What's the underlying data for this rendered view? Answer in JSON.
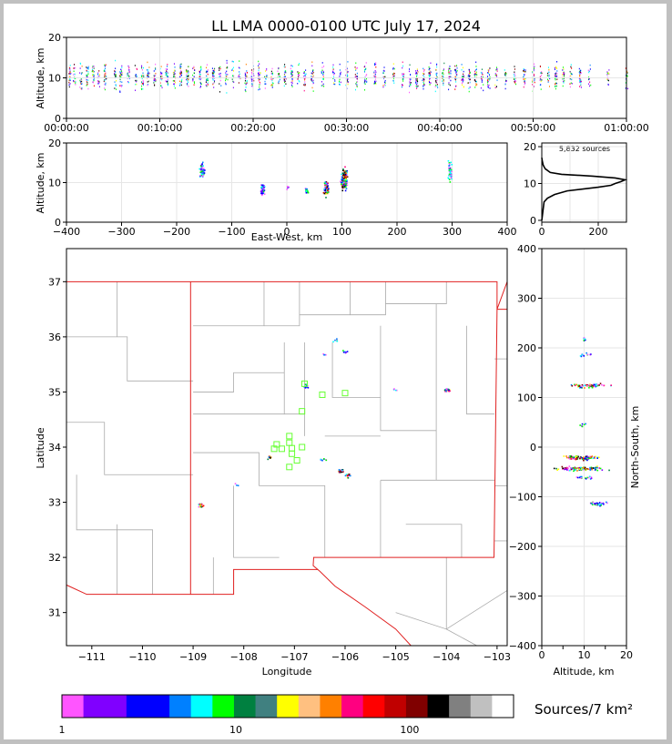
{
  "chart_data": {
    "title": "LL LMA 0000-0100 UTC July 17, 2024",
    "type": "scatter",
    "time_height": {
      "ylabel": "Altitude, km",
      "ylim": [
        0,
        20
      ],
      "yticks": [
        "0",
        "10",
        "20"
      ],
      "xticks": [
        "00:00:00",
        "00:10:00",
        "00:20:00",
        "00:30:00",
        "00:40:00",
        "00:50:00",
        "01:00:00"
      ],
      "xlim_minutes": [
        0,
        60
      ],
      "columns_minutes": [
        0.3,
        0.8,
        1.5,
        2.2,
        2.8,
        3.4,
        4.1,
        5.2,
        5.8,
        6.6,
        7.4,
        8.1,
        8.7,
        9.4,
        10.1,
        10.7,
        11.5,
        12.2,
        12.9,
        13.6,
        14.3,
        15.0,
        15.7,
        16.4,
        17.1,
        17.8,
        18.5,
        19.2,
        19.9,
        20.6,
        21.3,
        22.0,
        22.7,
        23.4,
        24.1,
        24.8,
        25.5,
        26.3,
        27.4,
        28.6,
        29.3,
        30.0,
        31.0,
        32.0,
        33.0,
        34.0,
        35.0,
        36.0,
        36.8,
        37.5,
        38.2,
        38.9,
        39.6,
        40.3,
        41.0,
        41.7,
        42.4,
        43.1,
        43.8,
        44.5,
        45.2,
        46.0,
        47.0,
        48.0,
        49.0,
        50.0,
        50.8,
        51.6,
        52.4,
        53.2,
        54.0,
        55.0,
        56.0,
        58.0,
        60.0
      ]
    },
    "ew_height": {
      "xlabel": "East-West, km",
      "ylabel": "Altitude, km",
      "xlim": [
        -400,
        400
      ],
      "ylim": [
        0,
        20
      ],
      "xticks": [
        "−400",
        "−300",
        "−200",
        "−100",
        "0",
        "100",
        "200",
        "300",
        "400"
      ],
      "yticks": [
        "0",
        "10",
        "20"
      ],
      "clusters": [
        {
          "x": -155,
          "y": 13,
          "spread_x": 6,
          "spread_y": 3,
          "n": 45
        },
        {
          "x": -45,
          "y": 8.5,
          "spread_x": 5,
          "spread_y": 2,
          "n": 40
        },
        {
          "x": 0,
          "y": 9,
          "spread_x": 2,
          "spread_y": 1,
          "n": 8
        },
        {
          "x": 35,
          "y": 8,
          "spread_x": 4,
          "spread_y": 1.2,
          "n": 20
        },
        {
          "x": 70,
          "y": 9,
          "spread_x": 6,
          "spread_y": 3,
          "n": 60
        },
        {
          "x": 103,
          "y": 11,
          "spread_x": 8,
          "spread_y": 3.5,
          "n": 140
        },
        {
          "x": 295,
          "y": 13,
          "spread_x": 5,
          "spread_y": 3.5,
          "n": 45
        }
      ]
    },
    "histogram": {
      "label": "5,832 sources",
      "xlim": [
        0,
        300
      ],
      "ylim": [
        0,
        20
      ],
      "xticks": [
        "0",
        "200"
      ],
      "yticks": [
        "0",
        "10",
        "20"
      ],
      "profile": [
        [
          0,
          0
        ],
        [
          5,
          8
        ],
        [
          6,
          20
        ],
        [
          7,
          45
        ],
        [
          8,
          90
        ],
        [
          9,
          200
        ],
        [
          9.5,
          245
        ],
        [
          10,
          260
        ],
        [
          10.5,
          280
        ],
        [
          11,
          295
        ],
        [
          11.5,
          260
        ],
        [
          12,
          180
        ],
        [
          12.5,
          70
        ],
        [
          13,
          30
        ],
        [
          14,
          12
        ],
        [
          15,
          5
        ],
        [
          16,
          2
        ],
        [
          17,
          0
        ]
      ]
    },
    "plan_view": {
      "xlabel": "Longitude",
      "ylabel": "Latitude",
      "xlim": [
        -111.5,
        -102.8
      ],
      "ylim": [
        30.4,
        37.6
      ],
      "xticks": [
        "−111",
        "−110",
        "−109",
        "−108",
        "−107",
        "−106",
        "−105",
        "−104",
        "−103"
      ],
      "yticks": [
        "31",
        "32",
        "33",
        "34",
        "35",
        "36",
        "37"
      ],
      "clusters": [
        {
          "lon": -108.85,
          "lat": 32.95,
          "n": 18
        },
        {
          "lon": -107.5,
          "lat": 33.82,
          "n": 12
        },
        {
          "lon": -106.45,
          "lat": 33.78,
          "n": 10
        },
        {
          "lon": -106.1,
          "lat": 33.58,
          "n": 30
        },
        {
          "lon": -105.95,
          "lat": 33.5,
          "n": 15
        },
        {
          "lon": -106.8,
          "lat": 35.12,
          "n": 10
        },
        {
          "lon": -106.2,
          "lat": 35.95,
          "n": 6
        },
        {
          "lon": -106.0,
          "lat": 35.75,
          "n": 6
        },
        {
          "lon": -106.45,
          "lat": 35.68,
          "n": 4
        },
        {
          "lon": -104.0,
          "lat": 35.05,
          "n": 25
        },
        {
          "lon": -105.05,
          "lat": 35.05,
          "n": 4
        },
        {
          "lon": -108.15,
          "lat": 33.33,
          "n": 3
        }
      ],
      "stations": [
        [
          -106.8,
          35.15
        ],
        [
          -106.45,
          34.95
        ],
        [
          -106.0,
          34.98
        ],
        [
          -106.85,
          34.65
        ],
        [
          -107.1,
          34.2
        ],
        [
          -107.1,
          34.08
        ],
        [
          -107.35,
          34.05
        ],
        [
          -107.4,
          33.97
        ],
        [
          -107.25,
          33.97
        ],
        [
          -107.05,
          33.98
        ],
        [
          -106.85,
          34.0
        ],
        [
          -107.05,
          33.88
        ],
        [
          -106.95,
          33.76
        ],
        [
          -107.1,
          33.64
        ]
      ]
    },
    "ns_height": {
      "xlabel": "Altitude, km",
      "ylabel": "North-South, km",
      "xlim": [
        0,
        20
      ],
      "ylim": [
        -400,
        400
      ],
      "xticks": [
        "0",
        "5",
        "10",
        "15",
        "20"
      ],
      "yticks": [
        "400",
        "300",
        "200",
        "100",
        "0",
        "−100",
        "−200",
        "−300",
        "−400"
      ],
      "clusters": [
        {
          "y": 220,
          "x": 10,
          "spread_x": 1,
          "n": 6
        },
        {
          "y": 188,
          "x": 10,
          "spread_x": 2,
          "n": 12
        },
        {
          "y": 125,
          "x": 11,
          "spread_x": 6,
          "n": 60
        },
        {
          "y": 48,
          "x": 9.5,
          "spread_x": 1,
          "n": 6
        },
        {
          "y": -20,
          "x": 9,
          "spread_x": 6,
          "n": 110
        },
        {
          "y": -42,
          "x": 9,
          "spread_x": 7,
          "n": 110
        },
        {
          "y": -60,
          "x": 10,
          "spread_x": 3,
          "n": 15
        },
        {
          "y": -112,
          "x": 13,
          "spread_x": 4,
          "n": 35
        }
      ]
    },
    "colorbar": {
      "label": "Sources/7 km²",
      "ticks": [
        "1",
        "10",
        "100"
      ],
      "colors": [
        "#ff55ff",
        "#8000ff",
        "#8000ff",
        "#0000ff",
        "#0000ff",
        "#0080ff",
        "#00ffff",
        "#00ff00",
        "#008040",
        "#408080",
        "#ffff00",
        "#ffc080",
        "#ff8000",
        "#ff0080",
        "#ff0000",
        "#c00000",
        "#800000",
        "#000000",
        "#808080",
        "#c0c0c0",
        "#ffffff"
      ]
    }
  }
}
